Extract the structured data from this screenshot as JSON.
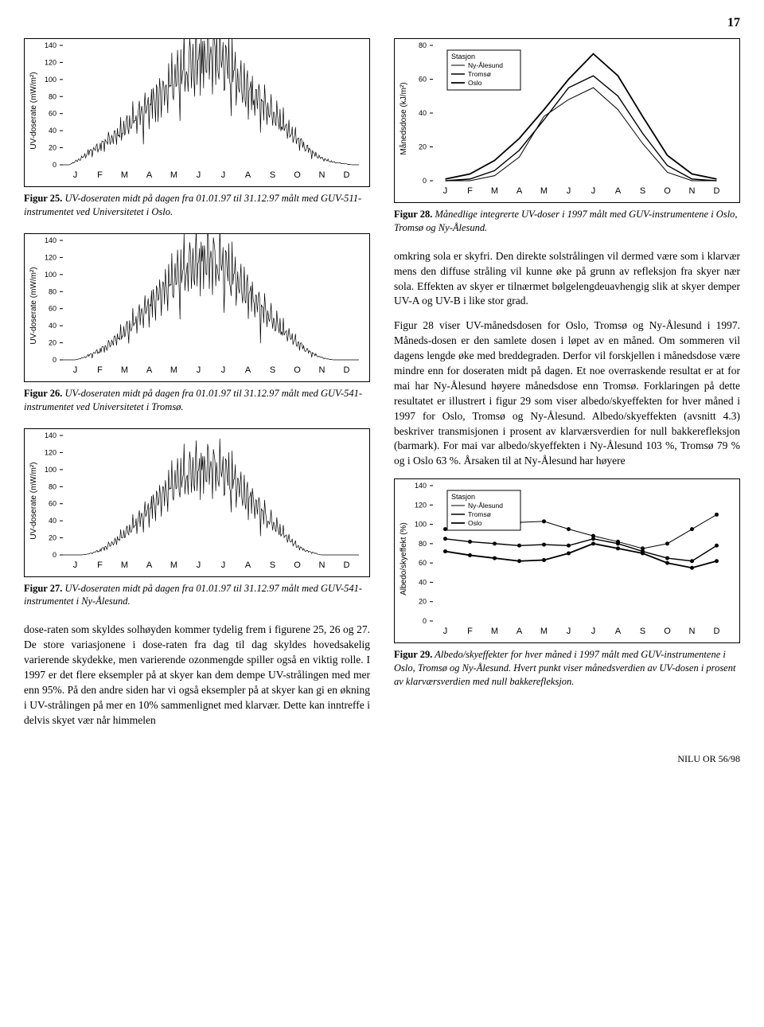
{
  "page_number": "17",
  "months": [
    "J",
    "F",
    "M",
    "A",
    "M",
    "J",
    "J",
    "A",
    "S",
    "O",
    "N",
    "D"
  ],
  "fig25": {
    "type": "line",
    "ylabel": "UV-doserate (mW/m²)",
    "ylim": [
      0,
      140
    ],
    "ytick_step": 20,
    "label_fontsize": 10,
    "line_color": "#000000",
    "caption_bold": "Figur 25.",
    "caption": "UV-doseraten midt på dagen fra 01.01.97 til 31.12.97 målt med GUV-511-instrumentet ved Universitetet i Oslo.",
    "data": [
      0,
      0,
      4,
      8,
      14,
      18,
      22,
      28,
      32,
      38,
      45,
      52,
      58,
      65,
      72,
      80,
      88,
      95,
      102,
      110,
      118,
      125,
      128,
      130,
      128,
      125,
      118,
      110,
      100,
      92,
      85,
      78,
      70,
      62,
      55,
      48,
      40,
      32,
      25,
      18,
      12,
      8,
      5,
      3,
      2,
      1,
      0,
      0
    ]
  },
  "fig26": {
    "type": "line",
    "ylabel": "UV-doserate (mW/m²)",
    "ylim": [
      0,
      140
    ],
    "ytick_step": 20,
    "label_fontsize": 10,
    "line_color": "#000000",
    "caption_bold": "Figur 26.",
    "caption": "UV-doseraten midt på dagen fra 01.01.97 til 31.12.97 målt med GUV-541-instrumentet ved Universitetet i Tromsø.",
    "data": [
      0,
      0,
      0,
      2,
      5,
      8,
      12,
      16,
      22,
      28,
      35,
      42,
      50,
      58,
      66,
      74,
      82,
      90,
      98,
      105,
      110,
      115,
      118,
      120,
      118,
      115,
      108,
      100,
      92,
      84,
      75,
      66,
      58,
      50,
      42,
      35,
      28,
      22,
      16,
      10,
      6,
      3,
      1,
      0,
      0,
      0,
      0,
      0
    ]
  },
  "fig27": {
    "type": "line",
    "ylabel": "UV-doserate (mW/m²)",
    "ylim": [
      0,
      140
    ],
    "ytick_step": 20,
    "label_fontsize": 10,
    "line_color": "#000000",
    "caption_bold": "Figur 27.",
    "caption": "UV-doseraten midt på dagen fra 01.01.97 til 31.12.97 målt med GUV-541-instrumentet i Ny-Ålesund.",
    "data": [
      0,
      0,
      0,
      0,
      1,
      3,
      6,
      10,
      15,
      20,
      26,
      33,
      40,
      48,
      56,
      64,
      72,
      80,
      86,
      92,
      97,
      100,
      102,
      103,
      102,
      100,
      95,
      88,
      80,
      72,
      64,
      56,
      48,
      40,
      32,
      25,
      18,
      12,
      7,
      4,
      2,
      0,
      0,
      0,
      0,
      0,
      0,
      0
    ]
  },
  "fig28": {
    "type": "line",
    "ylabel": "Månedsdose (kJ/m²)",
    "ylim": [
      0,
      80
    ],
    "ytick_step": 20,
    "label_fontsize": 10,
    "legend_title": "Stasjon",
    "legend_items": [
      "Ny-Ålesund",
      "Tromsø",
      "Oslo"
    ],
    "line_color": "#000000",
    "caption_bold": "Figur 28.",
    "caption": "Månedlige integrerte UV-doser i 1997 målt med GUV-instrumentene i Oslo, Tromsø og Ny-Ålesund.",
    "series": {
      "oslo": [
        1,
        4,
        12,
        25,
        42,
        60,
        75,
        62,
        38,
        15,
        4,
        1
      ],
      "tromso": [
        0,
        1,
        6,
        18,
        36,
        55,
        62,
        50,
        28,
        9,
        1,
        0
      ],
      "nyalesund": [
        0,
        0,
        3,
        14,
        38,
        48,
        55,
        42,
        22,
        5,
        0,
        0
      ]
    }
  },
  "fig29": {
    "type": "line",
    "ylabel": "Albedo/skyeffekt (%)",
    "ylim": [
      0,
      140
    ],
    "ytick_step": 20,
    "label_fontsize": 10,
    "legend_title": "Stasjon",
    "legend_items": [
      "Ny-Ålesund",
      "Tromsø",
      "Oslo"
    ],
    "line_color": "#000000",
    "caption_bold": "Figur 29.",
    "caption": "Albedo/skyeffekter for hver måned i 1997 målt med GUV-instrumentene i Oslo, Tromsø og Ny-Ålesund. Hvert punkt viser månedsverdien av UV-dosen i prosent av klarværsverdien med null bakkerefleksjon.",
    "series": {
      "oslo": [
        72,
        68,
        65,
        62,
        63,
        70,
        80,
        75,
        70,
        60,
        55,
        62
      ],
      "tromso": [
        85,
        82,
        80,
        78,
        79,
        78,
        85,
        80,
        72,
        65,
        62,
        78
      ],
      "nyalesund": [
        95,
        98,
        100,
        102,
        103,
        95,
        88,
        82,
        75,
        80,
        95,
        110
      ]
    }
  },
  "text_right_1": "omkring sola er skyfri. Den direkte solstrålingen vil dermed være som i klarvær mens den diffuse stråling vil kunne øke på grunn av refleksjon fra skyer nær sola. Effekten av skyer er tilnærmet bølgelengdeuavhengig slik at skyer demper UV-A og UV-B i like stor grad.",
  "text_right_2": "Figur 28 viser UV-månedsdosen for Oslo, Tromsø og Ny-Ålesund i 1997. Måneds-dosen er den samlete dosen i løpet av en måned. Om sommeren vil dagens lengde øke med breddegraden. Derfor vil forskjellen i månedsdose være mindre enn for doseraten midt på dagen. Et noe overraskende resultat er at for mai har Ny-Ålesund høyere månedsdose enn Tromsø. Forklaringen på dette resultatet er illustrert i figur 29 som viser albedo/skyeffekten for hver måned i 1997 for Oslo, Tromsø og Ny-Ålesund. Albedo/skyeffekten (avsnitt 4.3) beskriver transmisjonen i prosent av klarværsverdien for null bakkerefleksjon (barmark). For mai var albedo/skyeffekten i Ny-Ålesund 103 %, Tromsø 79 % og i Oslo 63 %. Årsaken til at Ny-Ålesund har høyere",
  "text_left_bottom": "dose-raten som skyldes solhøyden kommer tydelig frem i figurene 25, 26 og 27. De store variasjonene i dose-raten fra dag til dag skyldes hovedsakelig varierende skydekke, men varierende ozonmengde spiller også en viktig rolle. I 1997 er det flere eksempler på at skyer kan dem dempe UV-strålingen med mer enn 95%. På den andre siden har vi også eksempler på at skyer kan gi en økning i UV-strålingen på mer en 10% sammenlignet med klarvær. Dette kan inntreffe i delvis skyet vær når himmelen",
  "footer": "NILU OR 56/98",
  "colors": {
    "line": "#000000",
    "bg": "#ffffff",
    "grid": "#cccccc"
  }
}
